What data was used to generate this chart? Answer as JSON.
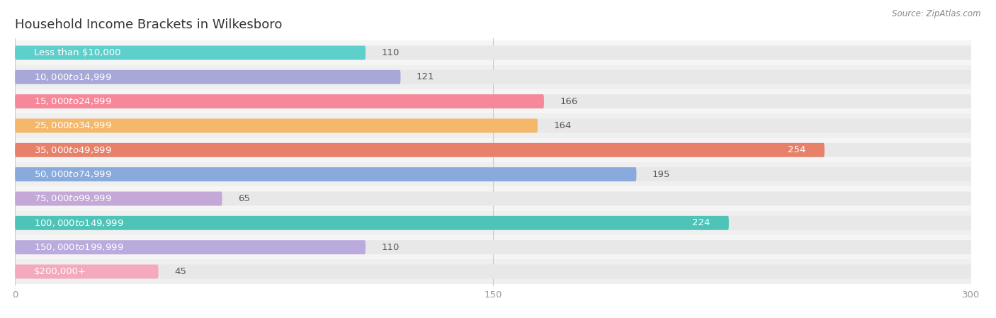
{
  "title": "Household Income Brackets in Wilkesboro",
  "source": "Source: ZipAtlas.com",
  "categories": [
    "Less than $10,000",
    "$10,000 to $14,999",
    "$15,000 to $24,999",
    "$25,000 to $34,999",
    "$35,000 to $49,999",
    "$50,000 to $74,999",
    "$75,000 to $99,999",
    "$100,000 to $149,999",
    "$150,000 to $199,999",
    "$200,000+"
  ],
  "values": [
    110,
    121,
    166,
    164,
    254,
    195,
    65,
    224,
    110,
    45
  ],
  "colors": [
    "#5ECFCA",
    "#A8A8D8",
    "#F7889A",
    "#F5B86A",
    "#E8816A",
    "#88AADC",
    "#C4A8D8",
    "#4EC4B8",
    "#BBAADD",
    "#F4AABC"
  ],
  "xlim": [
    0,
    300
  ],
  "xticks": [
    0,
    150,
    300
  ],
  "bar_bg_color": "#e8e8e8",
  "row_colors": [
    "#f5f5f5",
    "#efefef"
  ],
  "title_fontsize": 13,
  "label_fontsize": 9.5,
  "value_fontsize": 9.5,
  "value_inside_threshold": 200
}
